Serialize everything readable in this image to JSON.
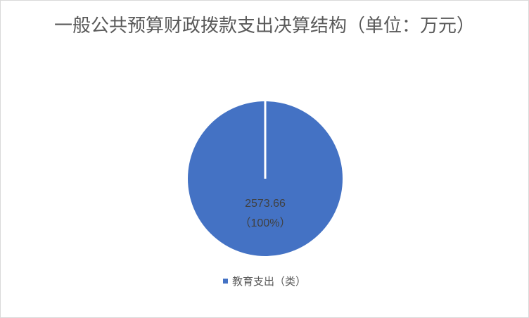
{
  "chart_data": {
    "type": "pie",
    "title": "一般公共预算财政拨款支出决算结构（单位：万元）",
    "categories": [
      "教育支出（类）"
    ],
    "values": [
      2573.66
    ],
    "data_labels": [
      "2573.66",
      "（100%）"
    ],
    "colors": [
      "#4472c4"
    ],
    "legend_position": "bottom"
  }
}
